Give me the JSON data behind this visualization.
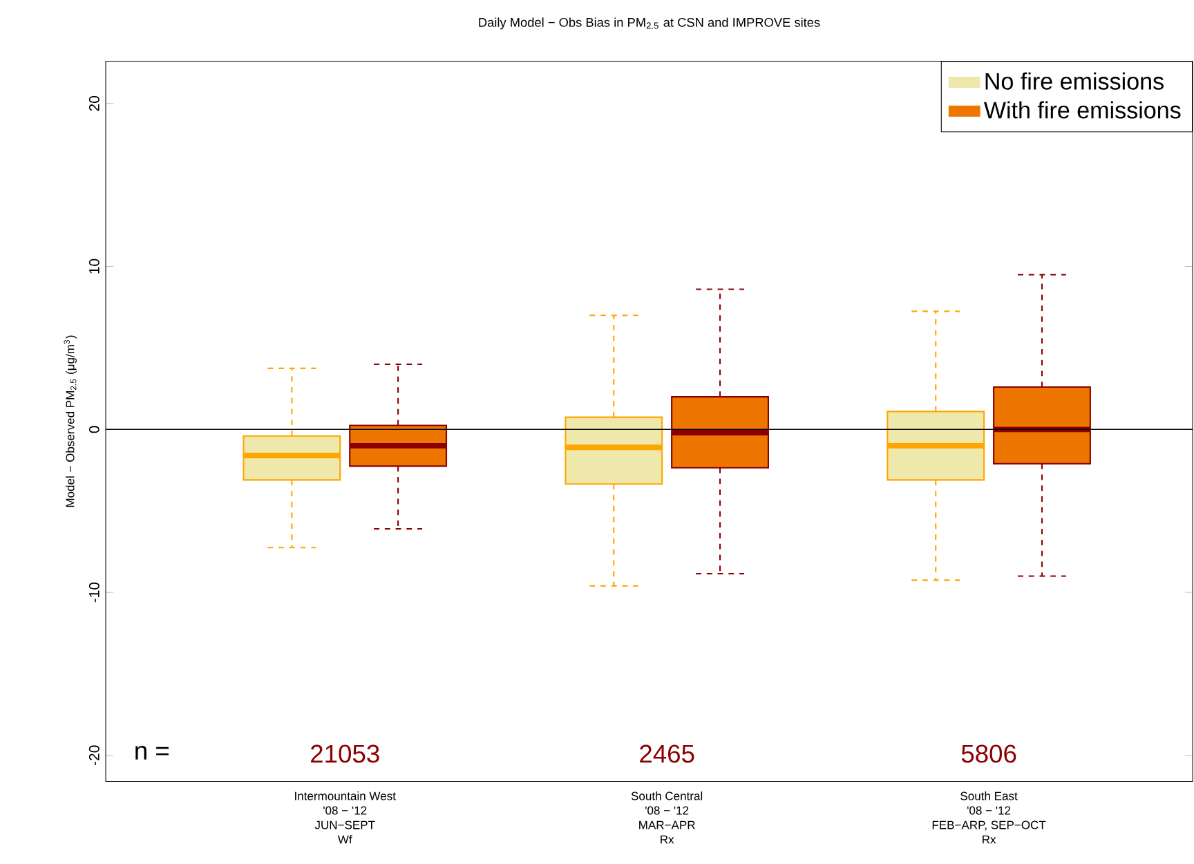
{
  "chart_data": {
    "type": "box",
    "title": "Daily Model − Obs Bias in PM$_{2.5}$ at CSN and IMPROVE sites",
    "ylabel": "Model − Observed PM$_{2.5}$ (μg/m$^{3}$)",
    "categories": [
      "Intermountain West\n'08 − '12\nJUN−SEPT\nWf",
      "South Central\n'08 − '12\nMAR−APR\nRx",
      "South East\n'08 − '12\nFEB−ARP, SEP−OCT\nRx"
    ],
    "series": [
      {
        "name": "No fire emissions",
        "color": "#eee8aa",
        "boxes": [
          {
            "low": -7.25,
            "q1": -3.1,
            "median": -1.6,
            "q3": -0.4,
            "high": 3.75
          },
          {
            "low": -9.6,
            "q1": -3.35,
            "median": -1.1,
            "q3": 0.75,
            "high": 7.0
          },
          {
            "low": -9.25,
            "q1": -3.1,
            "median": -1.0,
            "q3": 1.1,
            "high": 7.25
          }
        ]
      },
      {
        "name": "With fire emissions",
        "color": "#ee7600",
        "boxes": [
          {
            "low": -6.1,
            "q1": -2.25,
            "median": -1.0,
            "q3": 0.25,
            "high": 4.0
          },
          {
            "low": -8.85,
            "q1": -2.35,
            "median": -0.2,
            "q3": 2.0,
            "high": 8.6
          },
          {
            "low": -9.0,
            "q1": -2.1,
            "median": 0.0,
            "q3": 2.6,
            "high": 9.5
          }
        ]
      }
    ],
    "ylim": [
      -21.6,
      22.6
    ],
    "yticks": [
      -20,
      -10,
      0,
      10,
      20
    ],
    "ref_lines": [
      {
        "axis": "y",
        "value": 0,
        "color": "#000000"
      }
    ],
    "legend": "top right",
    "annotations": [
      "n =",
      "21053",
      "2465",
      "5806"
    ]
  }
}
